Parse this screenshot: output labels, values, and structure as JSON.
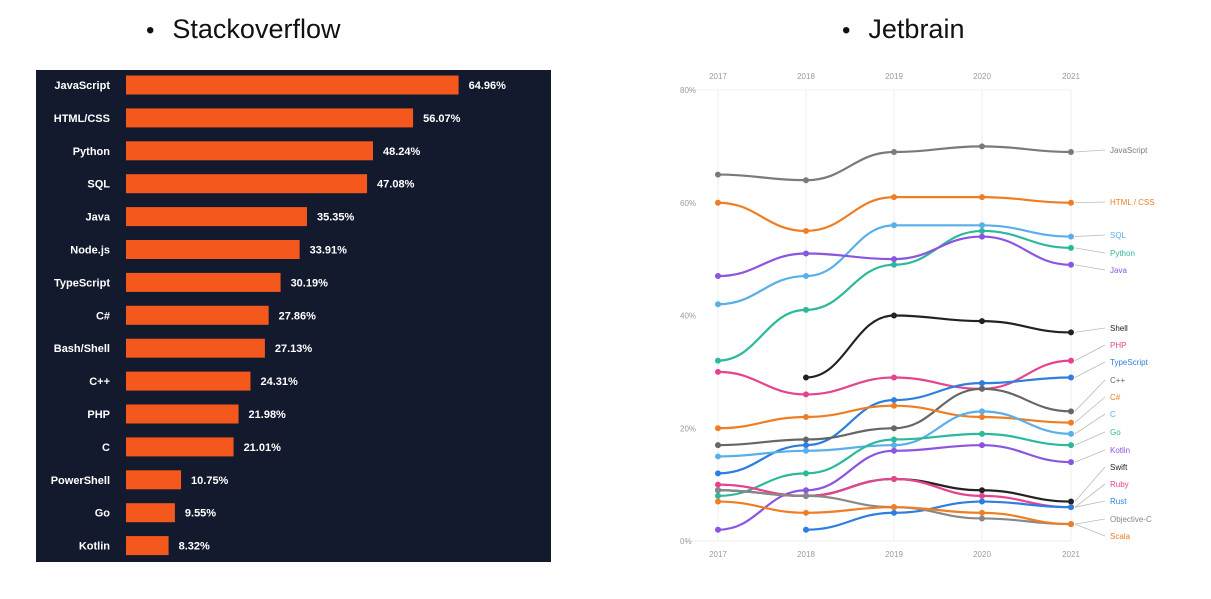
{
  "headings": {
    "bullet": "•",
    "left": "Stackoverflow",
    "right": "Jetbrain"
  },
  "chart_data": [
    {
      "type": "bar",
      "orientation": "horizontal",
      "categories": [
        "JavaScript",
        "HTML/CSS",
        "Python",
        "SQL",
        "Java",
        "Node.js",
        "TypeScript",
        "C#",
        "Bash/Shell",
        "C++",
        "PHP",
        "C",
        "PowerShell",
        "Go",
        "Kotlin"
      ],
      "values": [
        64.96,
        56.07,
        48.24,
        47.08,
        35.35,
        33.91,
        30.19,
        27.86,
        27.13,
        24.31,
        21.98,
        21.01,
        10.75,
        9.55,
        8.32
      ],
      "value_labels": [
        "64.96%",
        "56.07%",
        "48.24%",
        "47.08%",
        "35.35%",
        "33.91%",
        "30.19%",
        "27.86%",
        "27.13%",
        "24.31%",
        "21.98%",
        "21.01%",
        "10.75%",
        "9.55%",
        "8.32%"
      ],
      "bar_color": "#f4581c",
      "background": "#141a2e",
      "text_color": "#ffffff"
    },
    {
      "type": "line",
      "x": [
        "2017",
        "2018",
        "2019",
        "2020",
        "2021"
      ],
      "ylim": [
        0,
        80
      ],
      "y_ticks": [
        0,
        20,
        40,
        60,
        80
      ],
      "y_tick_labels": [
        "0%",
        "20%",
        "40%",
        "60%",
        "80%"
      ],
      "grid": true,
      "legend": "right-end labels",
      "series": [
        {
          "name": "JavaScript",
          "color": "#7a7a7a",
          "values": [
            65,
            64,
            69,
            70,
            69
          ]
        },
        {
          "name": "HTML / CSS",
          "color": "#ee7d23",
          "values": [
            60,
            55,
            61,
            61,
            60
          ]
        },
        {
          "name": "SQL",
          "color": "#5aaeea",
          "values": [
            42,
            47,
            56,
            56,
            54
          ]
        },
        {
          "name": "Python",
          "color": "#2db89b",
          "values": [
            32,
            41,
            49,
            55,
            52
          ]
        },
        {
          "name": "Java",
          "color": "#8a55e0",
          "values": [
            47,
            51,
            50,
            54,
            49
          ]
        },
        {
          "name": "Shell",
          "color": "#222222",
          "values": [
            null,
            29,
            40,
            39,
            37
          ]
        },
        {
          "name": "PHP",
          "color": "#e6438f",
          "values": [
            30,
            26,
            29,
            27,
            32
          ]
        },
        {
          "name": "TypeScript",
          "color": "#2e7de0",
          "values": [
            12,
            17,
            25,
            28,
            29
          ]
        },
        {
          "name": "C++",
          "color": "#666666",
          "values": [
            17,
            18,
            20,
            27,
            23
          ]
        },
        {
          "name": "C#",
          "color": "#ee7d23",
          "values": [
            20,
            22,
            24,
            22,
            21
          ]
        },
        {
          "name": "C",
          "color": "#5aaeea",
          "values": [
            15,
            16,
            17,
            23,
            19
          ]
        },
        {
          "name": "Go",
          "color": "#2db89b",
          "values": [
            8,
            12,
            18,
            19,
            17
          ]
        },
        {
          "name": "Kotlin",
          "color": "#8a55e0",
          "values": [
            2,
            9,
            16,
            17,
            14
          ]
        },
        {
          "name": "Swift",
          "color": "#222222",
          "values": [
            9,
            8,
            11,
            9,
            7
          ]
        },
        {
          "name": "Ruby",
          "color": "#e6438f",
          "values": [
            10,
            8,
            11,
            8,
            6
          ]
        },
        {
          "name": "Rust",
          "color": "#2e7de0",
          "values": [
            null,
            2,
            5,
            7,
            6
          ]
        },
        {
          "name": "Objective-C",
          "color": "#888888",
          "values": [
            9,
            8,
            6,
            4,
            3
          ]
        },
        {
          "name": "Scala",
          "color": "#ee7d23",
          "values": [
            7,
            5,
            6,
            5,
            3
          ]
        }
      ]
    }
  ]
}
